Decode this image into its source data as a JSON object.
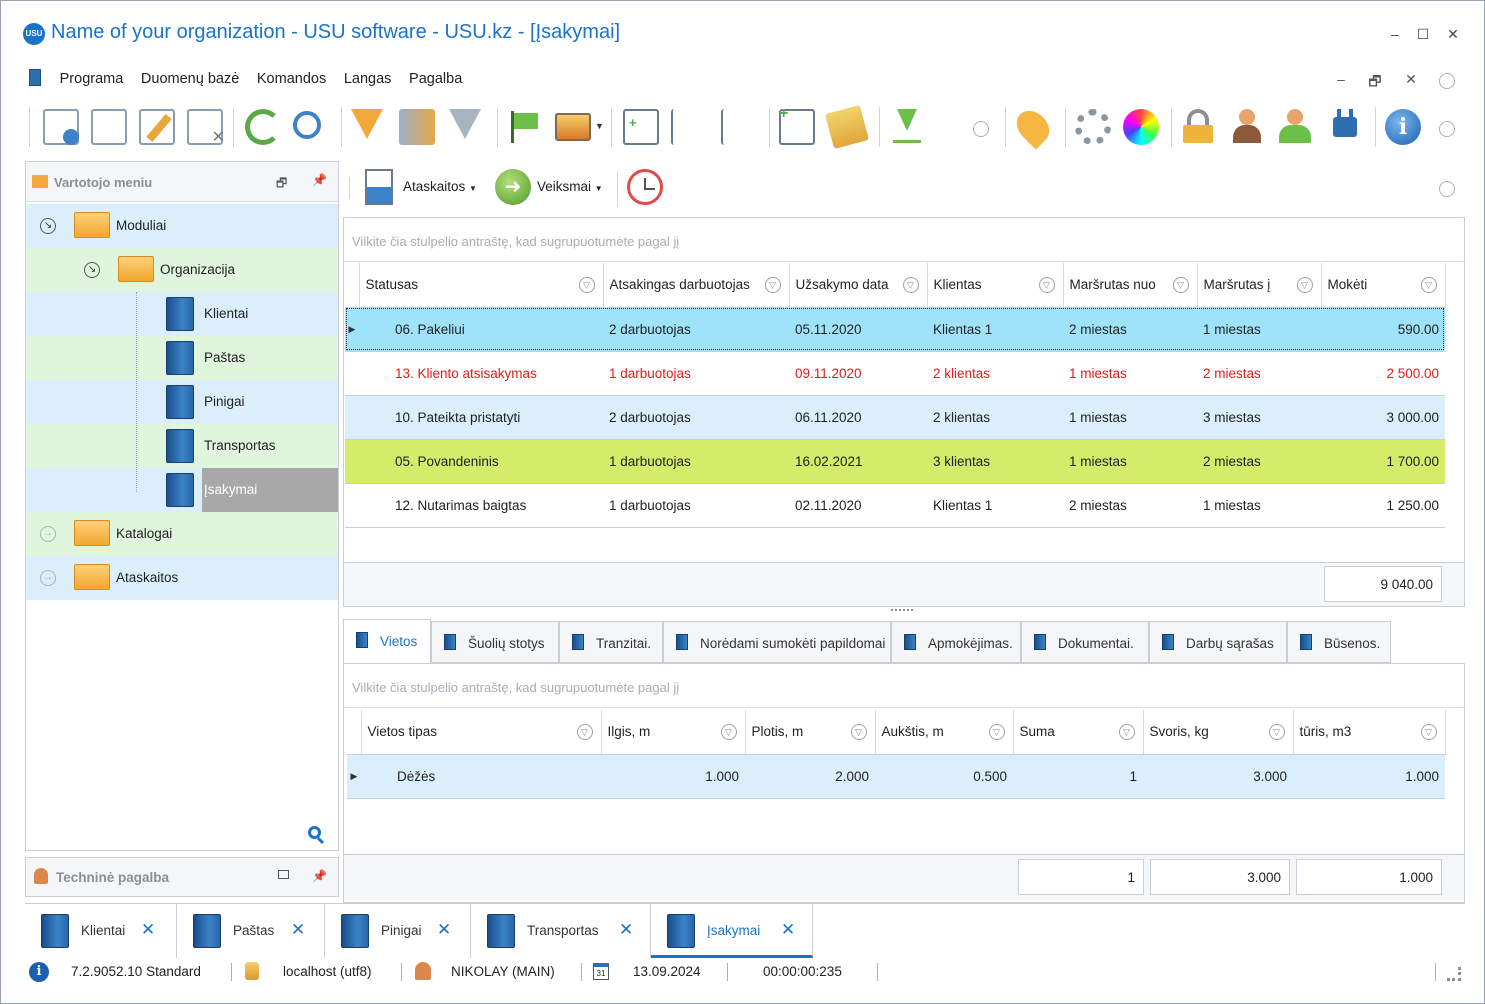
{
  "window": {
    "title": "Name of your organization - USU software - USU.kz - [Įsakymai]",
    "logo_text": "USU",
    "controls": [
      "–",
      "☐",
      "✕"
    ]
  },
  "menu": {
    "items": [
      "Programa",
      "Duomenų bazė",
      "Komandos",
      "Langas",
      "Pagalba"
    ],
    "mdi_controls": [
      "–",
      "🗗",
      "✕"
    ]
  },
  "left_panel": {
    "title": "Vartotojo meniu",
    "tree": [
      {
        "label": "Moduliai",
        "type": "folder",
        "level": 0,
        "expanded": true
      },
      {
        "label": "Organizacija",
        "type": "folder",
        "level": 1,
        "expanded": true
      },
      {
        "label": "Klientai",
        "type": "book",
        "level": 2
      },
      {
        "label": "Paštas",
        "type": "book",
        "level": 2
      },
      {
        "label": "Pinigai",
        "type": "book",
        "level": 2
      },
      {
        "label": "Transportas",
        "type": "book",
        "level": 2
      },
      {
        "label": "Įsakymai",
        "type": "book",
        "level": 2,
        "selected": true
      },
      {
        "label": "Katalogai",
        "type": "folder",
        "level": 0,
        "expanded": false
      },
      {
        "label": "Ataskaitos",
        "type": "folder",
        "level": 0,
        "expanded": false
      }
    ]
  },
  "tech_panel": {
    "title": "Techninė pagalba"
  },
  "subtoolbar": {
    "reports_label": "Ataskaitos",
    "actions_label": "Veiksmai"
  },
  "orders_grid": {
    "group_hint": "Vilkite čia stulpelio antraštę, kad sugrupuotumėte pagal jį",
    "columns": [
      "Statusas",
      "Atsakingas darbuotojas",
      "Užsakymo data",
      "Klientas",
      "Maršrutas nuo",
      "Maršrutas į",
      "Mokėti"
    ],
    "rows": [
      {
        "status": "06. Pakeliui",
        "employee": "2 darbuotojas",
        "date": "05.11.2020",
        "client": "Klientas 1",
        "from": "2 miestas",
        "to": "1 miestas",
        "pay": "590.00",
        "style": "selected"
      },
      {
        "status": "13. Kliento atsisakymas",
        "employee": "1 darbuotojas",
        "date": "09.11.2020",
        "client": "2 klientas",
        "from": "1 miestas",
        "to": "2 miestas",
        "pay": "2 500.00",
        "style": "red"
      },
      {
        "status": "10. Pateikta pristatyti",
        "employee": "2 darbuotojas",
        "date": "06.11.2020",
        "client": "2 klientas",
        "from": "1 miestas",
        "to": "3 miestas",
        "pay": "3 000.00",
        "style": "blue"
      },
      {
        "status": "05. Povandeninis",
        "employee": "1 darbuotojas",
        "date": "16.02.2021",
        "client": "3 klientas",
        "from": "1 miestas",
        "to": "2 miestas",
        "pay": "1 700.00",
        "style": "green"
      },
      {
        "status": "12. Nutarimas baigtas",
        "employee": "1 darbuotojas",
        "date": "02.11.2020",
        "client": "Klientas 1",
        "from": "2 miestas",
        "to": "1 miestas",
        "pay": "1 250.00",
        "style": "plain"
      }
    ],
    "total": "9 040.00"
  },
  "detail_tabs": [
    "Vietos",
    "Šuolių stotys",
    "Tranzitai.",
    "Norėdami sumokėti papildomai",
    "Apmokėjimas.",
    "Dokumentai.",
    "Darbų sąrašas",
    "Būsenos."
  ],
  "places_grid": {
    "group_hint": "Vilkite čia stulpelio antraštę, kad sugrupuotumėte pagal jį",
    "columns": [
      "Vietos tipas",
      "Ilgis, m",
      "Plotis, m",
      "Aukštis, m",
      "Suma",
      "Svoris, kg",
      "tūris, m3"
    ],
    "rows": [
      {
        "type": "Dėžės",
        "length": "1.000",
        "width": "2.000",
        "height": "0.500",
        "sum": "1",
        "weight": "3.000",
        "volume": "1.000"
      }
    ],
    "totals": {
      "sum": "1",
      "weight": "3.000",
      "volume": "1.000"
    }
  },
  "doc_tabs": [
    "Klientai",
    "Paštas",
    "Pinigai",
    "Transportas",
    "Įsakymai"
  ],
  "status_bar": {
    "version": "7.2.9052.10 Standard",
    "db": "localhost (utf8)",
    "user": "NIKOLAY (MAIN)",
    "calendar_day": "31",
    "date": "13.09.2024",
    "timer": "00:00:00:235"
  },
  "colors": {
    "accent": "#1a73c9",
    "selected_row": "#9fe3fb",
    "blue_row": "#dbeefb",
    "green_row": "#d4ec6a",
    "red_text": "#e01b1b",
    "tree_blue": "#dbeefb",
    "tree_green": "#dff5dc"
  }
}
